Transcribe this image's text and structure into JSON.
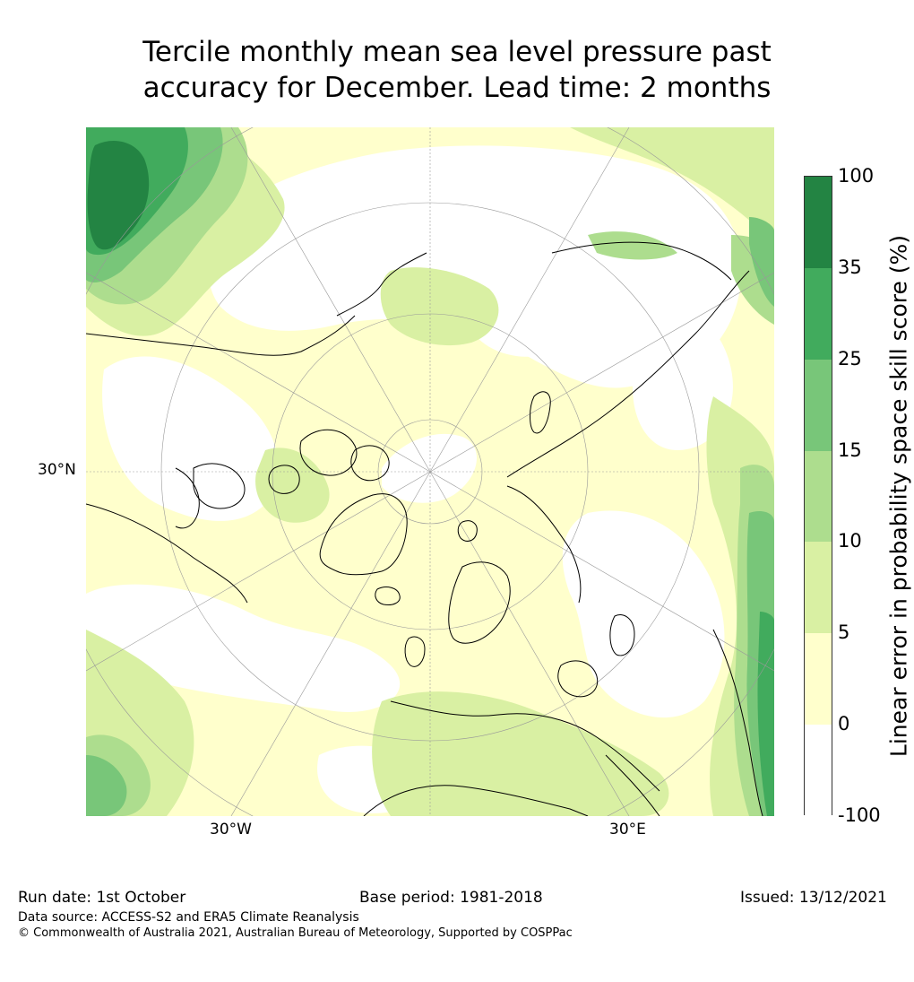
{
  "title_line1": "Tercile monthly mean sea level pressure past",
  "title_line2": "accuracy for December. Lead time: 2 months",
  "map": {
    "lat_label": "30°N",
    "lon_labels": [
      "30°W",
      "30°E"
    ],
    "land_color": "#000000"
  },
  "colorbar": {
    "label": "Linear error in probability space skill score (%)",
    "ticks": [
      "100",
      "35",
      "25",
      "15",
      "10",
      "5",
      "0",
      "-100"
    ],
    "bins": [
      {
        "from": "35",
        "to": "100",
        "color": "#238443"
      },
      {
        "from": "25",
        "to": "35",
        "color": "#41ab5d"
      },
      {
        "from": "15",
        "to": "25",
        "color": "#78c679"
      },
      {
        "from": "10",
        "to": "15",
        "color": "#addd8e"
      },
      {
        "from": "5",
        "to": "10",
        "color": "#d9f0a3"
      },
      {
        "from": "0",
        "to": "5",
        "color": "#ffffcc"
      },
      {
        "from": "-100",
        "to": "0",
        "color": "#ffffff"
      }
    ]
  },
  "footer": {
    "run_date": "Run date: 1st October",
    "base_period": "Base period: 1981-2018",
    "issued": "Issued: 13/12/2021",
    "data_source": "Data source: ACCESS-S2 and ERA5 Climate Reanalysis",
    "copyright": "© Commonwealth of Australia 2021, Australian Bureau of Meteorology, Supported by COSPPac"
  }
}
